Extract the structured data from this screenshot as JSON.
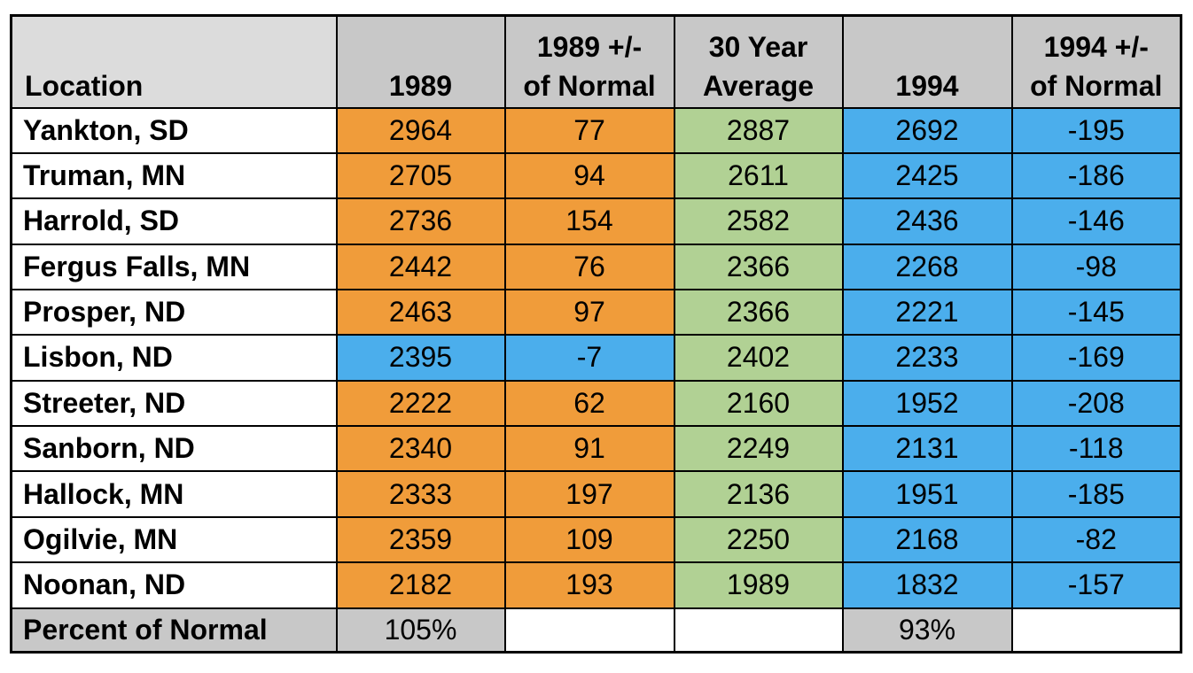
{
  "chart_data": {
    "type": "table",
    "columns": [
      "Location",
      "1989",
      "1989 +/- of Normal",
      "30 Year Average",
      "1994",
      "1994 +/- of Normal"
    ],
    "header_lines": [
      [
        "Location"
      ],
      [
        "1989"
      ],
      [
        "1989 +/-",
        "of Normal"
      ],
      [
        "30 Year",
        "Average"
      ],
      [
        "1994"
      ],
      [
        "1994 +/-",
        "of Normal"
      ]
    ],
    "rows": [
      {
        "location": "Yankton, SD",
        "y1989": "2964",
        "d1989": "77",
        "avg30": "2887",
        "y1994": "2692",
        "d1994": "-195"
      },
      {
        "location": "Truman, MN",
        "y1989": "2705",
        "d1989": "94",
        "avg30": "2611",
        "y1994": "2425",
        "d1994": "-186"
      },
      {
        "location": "Harrold, SD",
        "y1989": "2736",
        "d1989": "154",
        "avg30": "2582",
        "y1994": "2436",
        "d1994": "-146"
      },
      {
        "location": "Fergus Falls, MN",
        "y1989": "2442",
        "d1989": "76",
        "avg30": "2366",
        "y1994": "2268",
        "d1994": "-98"
      },
      {
        "location": "Prosper, ND",
        "y1989": "2463",
        "d1989": "97",
        "avg30": "2366",
        "y1994": "2221",
        "d1994": "-145"
      },
      {
        "location": "Lisbon, ND",
        "y1989": "2395",
        "d1989": "-7",
        "avg30": "2402",
        "y1994": "2233",
        "d1994": "-169"
      },
      {
        "location": "Streeter, ND",
        "y1989": "2222",
        "d1989": "62",
        "avg30": "2160",
        "y1994": "1952",
        "d1994": "-208"
      },
      {
        "location": "Sanborn, ND",
        "y1989": "2340",
        "d1989": "91",
        "avg30": "2249",
        "y1994": "2131",
        "d1994": "-118"
      },
      {
        "location": "Hallock, MN",
        "y1989": "2333",
        "d1989": "197",
        "avg30": "2136",
        "y1994": "1951",
        "d1994": "-185"
      },
      {
        "location": "Ogilvie, MN",
        "y1989": "2359",
        "d1989": "109",
        "avg30": "2250",
        "y1994": "2168",
        "d1994": "-82"
      },
      {
        "location": "Noonan, ND",
        "y1989": "2182",
        "d1989": "193",
        "avg30": "1989",
        "y1994": "1832",
        "d1994": "-157"
      }
    ],
    "footer": {
      "label": "Percent of Normal",
      "y1989": "105%",
      "d1989": "",
      "avg30": "",
      "y1994": "93%",
      "d1994": ""
    },
    "colors": {
      "above_normal": "#f09c3a",
      "below_normal": "#4baeec",
      "average": "#b1d194",
      "header": "#c8c8c8",
      "location_header": "#dcdcdc"
    }
  }
}
